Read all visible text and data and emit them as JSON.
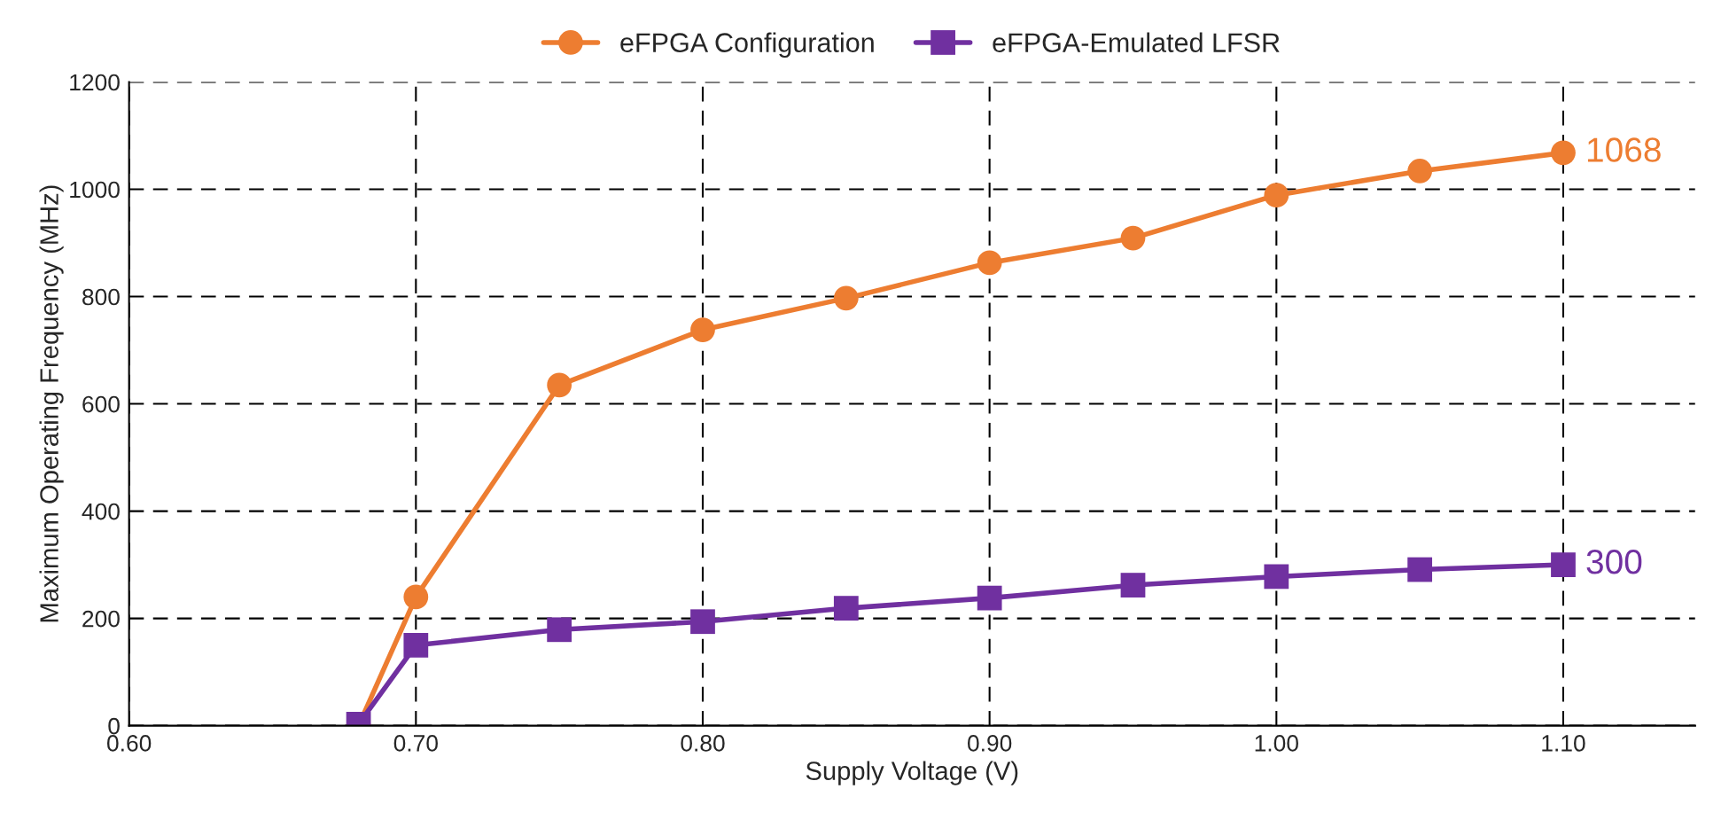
{
  "chart_data": {
    "type": "line",
    "xlabel": "Supply Voltage (V)",
    "ylabel": "Maximum Operating Frequency (MHz)",
    "x": [
      0.68,
      0.7,
      0.75,
      0.8,
      0.85,
      0.9,
      0.95,
      1.0,
      1.05,
      1.1
    ],
    "series": [
      {
        "name": "eFPGA Configuration",
        "color": "#ed7d31",
        "marker": "circle",
        "values": [
          0,
          240,
          635,
          738,
          797,
          863,
          909,
          989,
          1034,
          1068
        ]
      },
      {
        "name": "eFPGA-Emulated LFSR",
        "color": "#7030a0",
        "marker": "square",
        "values": [
          3,
          150,
          179,
          194,
          219,
          238,
          262,
          278,
          291,
          300
        ]
      }
    ],
    "annotations": [
      {
        "text": "1068",
        "x": 1.1,
        "y": 1068
      },
      {
        "text": "300",
        "x": 1.1,
        "y": 300
      }
    ],
    "xlim": [
      0.6,
      1.146
    ],
    "xticks": [
      {
        "value": 0.6,
        "label": "0.60"
      },
      {
        "value": 0.7,
        "label": "0.70"
      },
      {
        "value": 0.8,
        "label": "0.80"
      },
      {
        "value": 0.9,
        "label": "0.90"
      },
      {
        "value": 1.0,
        "label": "1.00"
      },
      {
        "value": 1.1,
        "label": "1.10"
      }
    ],
    "ylim": [
      0,
      1200
    ],
    "yticks": [
      0,
      200,
      400,
      600,
      800,
      1000,
      1200
    ],
    "grid": true,
    "line_style": "solid",
    "legend": "top"
  }
}
